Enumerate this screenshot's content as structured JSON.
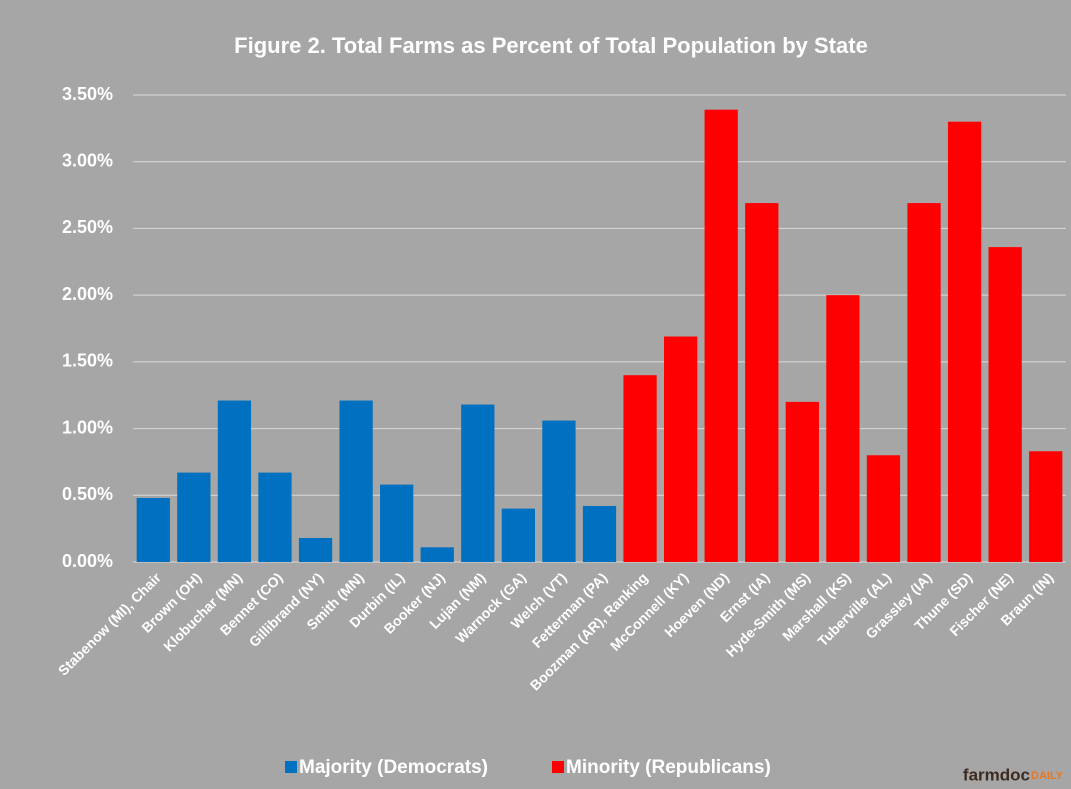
{
  "chart_data": {
    "type": "bar",
    "title": "Figure  2. Total Farms as Percent of Total Population  by State",
    "categories": [
      "Stabenow (MI), Chair",
      "Brown (OH)",
      "Klobuchar (MN)",
      "Bennet (CO)",
      "Gillibrand (NY)",
      "Smith (MN)",
      "Durbin (IL)",
      "Booker (NJ)",
      "Lujan (NM)",
      "Warnock (GA)",
      "Welch (VT)",
      "Fetterman (PA)",
      "Boozman (AR), Ranking",
      "McConnell (KY)",
      "Hoeven (ND)",
      "Ernst (IA)",
      "Hyde-Smith (MS)",
      "Marshall (KS)",
      "Tuberville (AL)",
      "Grassley (IA)",
      "Thune (SD)",
      "Fischer (NE)",
      "Braun (IN)"
    ],
    "series": [
      {
        "name": "Majority (Democrats)",
        "color": "#0070c0",
        "values": [
          0.48,
          0.67,
          1.21,
          0.67,
          0.18,
          1.21,
          0.58,
          0.11,
          1.18,
          0.4,
          1.06,
          0.42,
          null,
          null,
          null,
          null,
          null,
          null,
          null,
          null,
          null,
          null,
          null
        ]
      },
      {
        "name": "Minority (Republicans)",
        "color": "#ff0000",
        "values": [
          null,
          null,
          null,
          null,
          null,
          null,
          null,
          null,
          null,
          null,
          null,
          null,
          1.4,
          1.69,
          3.39,
          2.69,
          1.2,
          2.0,
          0.8,
          2.69,
          3.3,
          2.36,
          0.83
        ]
      }
    ],
    "ylim": [
      0,
      3.5
    ],
    "yticks": [
      {
        "value": 0,
        "label": "0.00%"
      },
      {
        "value": 0.5,
        "label": "0.50%"
      },
      {
        "value": 1,
        "label": "1.00%"
      },
      {
        "value": 1.5,
        "label": "1.50%"
      },
      {
        "value": 2,
        "label": "2.00%"
      },
      {
        "value": 2.5,
        "label": "2.50%"
      },
      {
        "value": 3,
        "label": "3.00%"
      },
      {
        "value": 3.5,
        "label": "3.50%"
      }
    ],
    "grid": true,
    "legend": "bottom",
    "logo_main": "farmdoc",
    "logo_accent": "DAILY"
  }
}
